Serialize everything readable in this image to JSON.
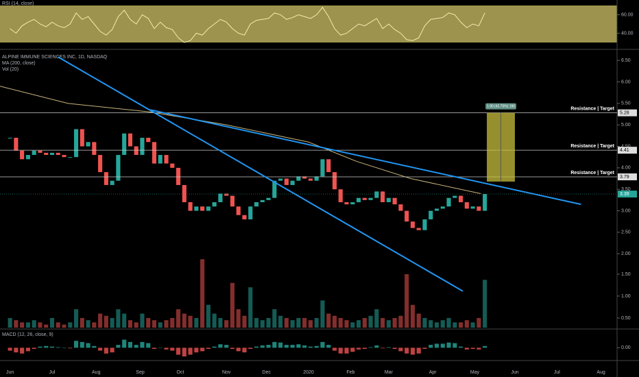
{
  "chart_data": {
    "type": "candlestick",
    "title": "ALPINE IMMUNE SCIENCES INC, 1D, NASDAQ",
    "ma_label": "MA (200, close)",
    "vol_label": "Vol (20)",
    "rsi_label": "RSI (14, close)",
    "macd_label": "MACD (12, 26, close, 9)",
    "up_color": "#26a69a",
    "down_color": "#ef5350",
    "trend_color": "#2196f3",
    "ma_color": "#c8b47a",
    "xlim": [
      -5,
      303
    ],
    "xticks": [
      {
        "value": 0,
        "label": "Jun"
      },
      {
        "value": 21,
        "label": "Jul"
      },
      {
        "value": 43,
        "label": "Aug"
      },
      {
        "value": 65,
        "label": "Sep"
      },
      {
        "value": 85,
        "label": "Oct"
      },
      {
        "value": 108,
        "label": "Nov"
      },
      {
        "value": 128,
        "label": "Dec"
      },
      {
        "value": 149,
        "label": "2020"
      },
      {
        "value": 170,
        "label": "Feb"
      },
      {
        "value": 189,
        "label": "Mar"
      },
      {
        "value": 211,
        "label": "Apr"
      },
      {
        "value": 232,
        "label": "May"
      },
      {
        "value": 252,
        "label": "Jun"
      },
      {
        "value": 273,
        "label": "Jul"
      },
      {
        "value": 295,
        "label": "Aug"
      }
    ],
    "ylim": [
      0.28,
      6.71
    ],
    "yticks": [
      {
        "value": 6.5,
        "label": "6.50"
      },
      {
        "value": 6,
        "label": "6.00"
      },
      {
        "value": 5.5,
        "label": "5.50"
      },
      {
        "value": 5,
        "label": "5.00"
      },
      {
        "value": 4.5,
        "label": "4.50"
      },
      {
        "value": 4,
        "label": "4.00"
      },
      {
        "value": 3.5,
        "label": "3.50"
      },
      {
        "value": 3,
        "label": "3.00"
      },
      {
        "value": 2.5,
        "label": "2.50"
      },
      {
        "value": 2,
        "label": "2.00"
      }
    ],
    "vol_ylim": [
      0.28,
      6.58
    ],
    "vol_ticks": [
      {
        "value": 1.5,
        "label": "1.50"
      },
      {
        "value": 1,
        "label": "1.00"
      },
      {
        "value": 0.5,
        "label": "0.50"
      }
    ],
    "rsi_ylim": [
      24,
      76
    ],
    "rsi_ticks": [
      {
        "value": 60,
        "label": "60.00"
      },
      {
        "value": 40,
        "label": "40.00"
      }
    ],
    "macd_ylim": [
      -0.15,
      0.3
    ],
    "macd_ticks": [
      {
        "value": 0,
        "label": "0.00"
      }
    ],
    "x": [
      0,
      3,
      6,
      9,
      12,
      15,
      18,
      21,
      24,
      27,
      30,
      33,
      36,
      39,
      42,
      45,
      48,
      51,
      54,
      57,
      60,
      63,
      66,
      69,
      72,
      75,
      78,
      81,
      84,
      87,
      90,
      93,
      96,
      99,
      102,
      105,
      108,
      111,
      114,
      117,
      120,
      123,
      126,
      129,
      132,
      135,
      138,
      141,
      144,
      147,
      150,
      153,
      156,
      159,
      162,
      165,
      168,
      171,
      174,
      177,
      180,
      183,
      186,
      189,
      192,
      195,
      198,
      201,
      204,
      207,
      210,
      213,
      216,
      219,
      222,
      225,
      228,
      231,
      234,
      237
    ],
    "close": [
      4.7,
      4.4,
      4.2,
      4.3,
      4.4,
      4.35,
      4.3,
      4.35,
      4.3,
      4.25,
      4.25,
      4.9,
      4.5,
      4.6,
      4.3,
      3.9,
      3.6,
      3.7,
      4.3,
      4.8,
      4.5,
      4.3,
      4.7,
      4.6,
      4.1,
      4.3,
      4.1,
      4.0,
      3.6,
      3.2,
      3.0,
      3.1,
      3.0,
      3.1,
      3.2,
      3.4,
      3.35,
      3.1,
      2.9,
      2.8,
      3.1,
      3.2,
      3.25,
      3.3,
      3.7,
      3.75,
      3.6,
      3.7,
      3.8,
      3.75,
      3.7,
      3.8,
      4.2,
      3.9,
      3.5,
      3.2,
      3.15,
      3.2,
      3.3,
      3.25,
      3.3,
      3.45,
      3.2,
      3.3,
      3.15,
      3.0,
      2.75,
      2.6,
      2.55,
      2.8,
      3.0,
      3.05,
      3.1,
      3.3,
      3.35,
      3.2,
      3.05,
      3.1,
      3.0,
      3.39
    ],
    "volume": [
      0.5,
      0.45,
      0.4,
      0.4,
      0.45,
      0.4,
      0.35,
      0.5,
      0.4,
      0.35,
      0.4,
      0.7,
      0.5,
      0.45,
      0.4,
      0.6,
      0.55,
      0.5,
      0.7,
      0.6,
      0.45,
      0.4,
      0.6,
      0.5,
      0.45,
      0.4,
      0.45,
      0.5,
      0.7,
      0.6,
      0.55,
      0.5,
      1.84,
      0.8,
      0.6,
      0.5,
      0.45,
      1.3,
      0.7,
      0.55,
      1.2,
      0.5,
      0.45,
      0.5,
      0.7,
      0.55,
      0.5,
      0.45,
      0.5,
      0.5,
      0.45,
      0.5,
      0.9,
      0.6,
      0.55,
      0.5,
      0.45,
      0.4,
      0.45,
      0.5,
      0.55,
      0.7,
      0.5,
      0.45,
      0.5,
      0.55,
      1.5,
      0.8,
      0.6,
      0.5,
      0.45,
      0.4,
      0.45,
      0.5,
      0.4,
      0.4,
      0.45,
      0.4,
      0.5,
      1.37
    ],
    "rsi": [
      45,
      40,
      48,
      52,
      55,
      50,
      47,
      52,
      48,
      46,
      50,
      62,
      55,
      58,
      50,
      42,
      38,
      44,
      58,
      65,
      55,
      50,
      60,
      56,
      45,
      52,
      46,
      44,
      35,
      30,
      32,
      40,
      38,
      45,
      50,
      55,
      52,
      45,
      40,
      38,
      50,
      54,
      55,
      56,
      62,
      60,
      55,
      57,
      60,
      58,
      56,
      60,
      68,
      58,
      45,
      38,
      40,
      45,
      50,
      48,
      52,
      56,
      45,
      50,
      44,
      40,
      33,
      32,
      35,
      48,
      55,
      56,
      57,
      62,
      60,
      52,
      46,
      50,
      48,
      62
    ],
    "macd_hist": [
      -0.05,
      -0.08,
      -0.1,
      -0.06,
      -0.02,
      0.02,
      0.03,
      0.02,
      0.01,
      0,
      -0.01,
      0.12,
      0.1,
      0.08,
      0.03,
      -0.05,
      -0.1,
      -0.08,
      0.05,
      0.14,
      0.1,
      0.05,
      0.1,
      0.08,
      -0.02,
      0,
      -0.03,
      -0.05,
      -0.12,
      -0.15,
      -0.12,
      -0.08,
      -0.06,
      -0.02,
      0.02,
      0.06,
      0.05,
      -0.02,
      -0.06,
      -0.08,
      -0.02,
      0.02,
      0.04,
      0.05,
      0.1,
      0.09,
      0.05,
      0.05,
      0.06,
      0.04,
      0.02,
      0.03,
      0.1,
      0.05,
      -0.05,
      -0.1,
      -0.1,
      -0.07,
      -0.03,
      -0.02,
      0.01,
      0.04,
      -0.01,
      0.01,
      -0.02,
      -0.06,
      -0.1,
      -0.12,
      -0.1,
      -0.02,
      0.05,
      0.07,
      0.07,
      0.09,
      0.08,
      0.02,
      -0.03,
      -0.02,
      -0.03,
      0.03
    ],
    "ma": {
      "x": [
        -5,
        29,
        70,
        108,
        149,
        173,
        200,
        235
      ],
      "values": [
        5.9,
        5.5,
        5.3,
        5.0,
        4.6,
        4.15,
        3.75,
        3.4
      ]
    },
    "trendlines": [
      {
        "x": [
          24,
          226
        ],
        "values": [
          6.58,
          1.13
        ]
      },
      {
        "x": [
          70,
          285
        ],
        "values": [
          5.35,
          3.15
        ]
      }
    ],
    "levels": [
      {
        "value": 5.28,
        "note": "Resistance | Target"
      },
      {
        "value": 4.41,
        "note": "Resistance | Target"
      },
      {
        "value": 3.79,
        "note": "Resistance | Target"
      }
    ],
    "projection": {
      "label": "1.90 (42.75%) 190",
      "x": [
        238,
        252
      ],
      "values": [
        3.68,
        5.28
      ]
    }
  }
}
